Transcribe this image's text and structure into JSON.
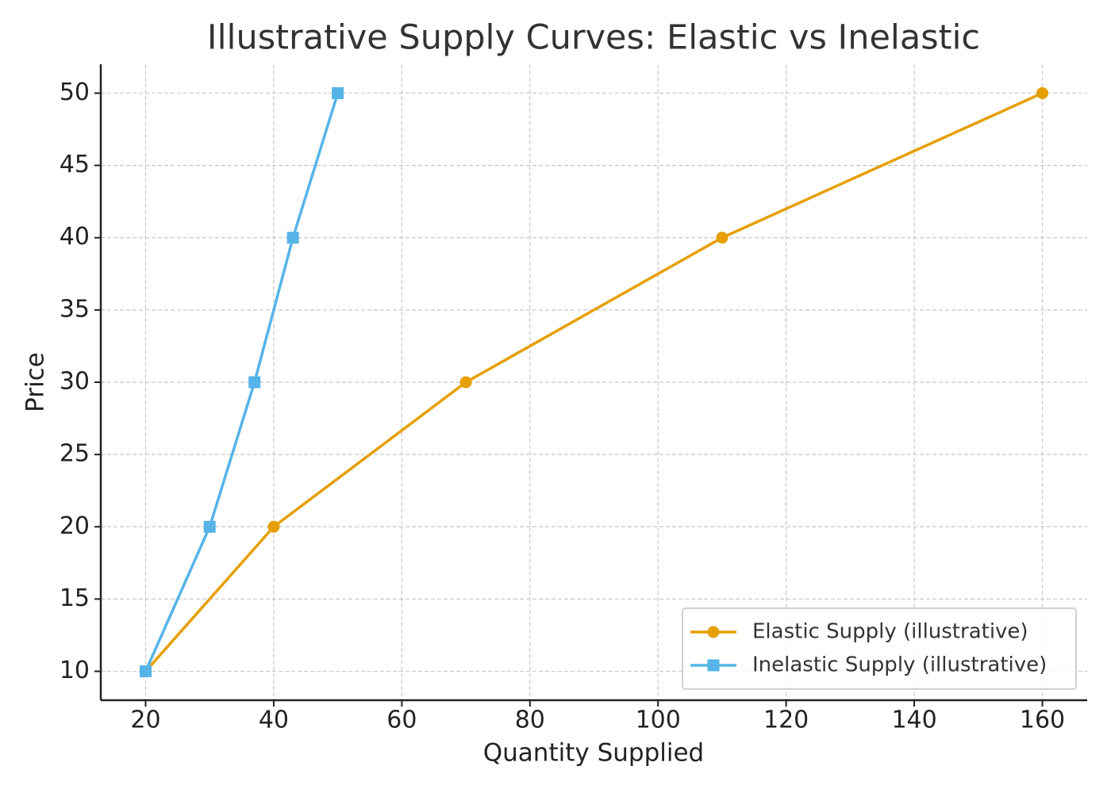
{
  "chart_data": {
    "type": "line",
    "title": "Illustrative Supply Curves: Elastic vs Inelastic",
    "xlabel": "Quantity Supplied",
    "ylabel": "Price",
    "series": [
      {
        "name": "Elastic Supply (illustrative)",
        "color": "#e69f00",
        "marker": "circle",
        "x": [
          20,
          40,
          70,
          110,
          160
        ],
        "values": [
          10,
          20,
          30,
          40,
          50
        ]
      },
      {
        "name": "Inelastic Supply (illustrative)",
        "color": "#56b4e9",
        "marker": "square",
        "x": [
          20,
          30,
          37,
          43,
          50
        ],
        "values": [
          10,
          20,
          30,
          40,
          50
        ]
      }
    ],
    "xlim": [
      13,
      167
    ],
    "xticks": [
      20,
      40,
      60,
      80,
      100,
      120,
      140,
      160
    ],
    "ylim": [
      8,
      52
    ],
    "yticks": [
      10,
      15,
      20,
      25,
      30,
      35,
      40,
      45,
      50
    ],
    "grid": true,
    "legend": "lower right"
  }
}
